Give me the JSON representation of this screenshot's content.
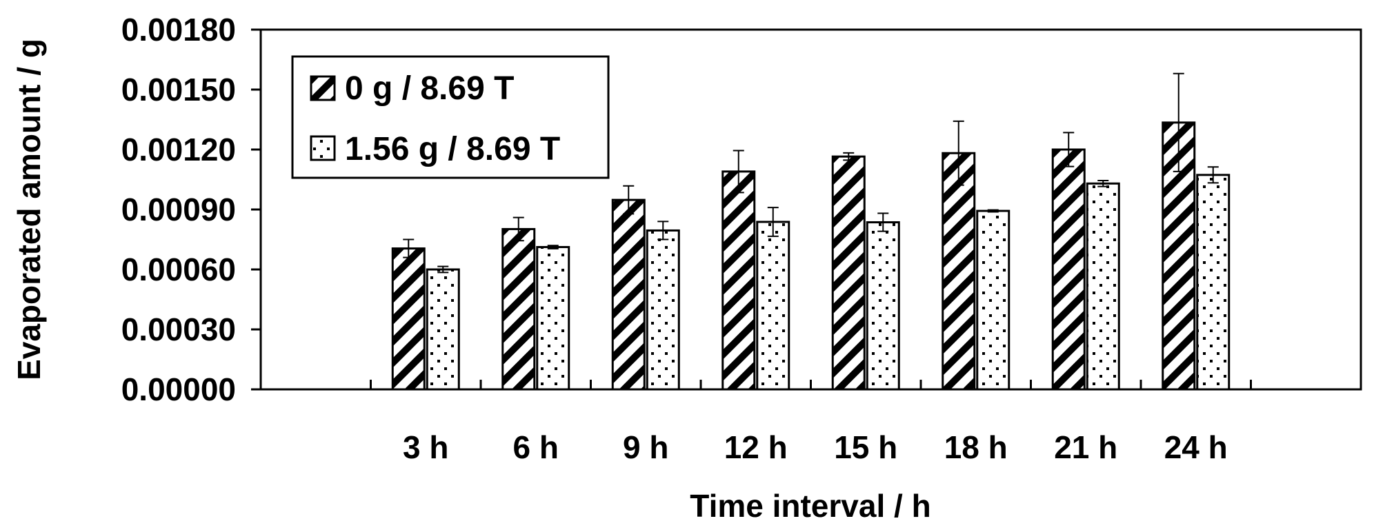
{
  "chart_data": {
    "type": "bar",
    "title": "",
    "xlabel": "Time interval / h",
    "ylabel": "Evaporated amount / g",
    "ylim": [
      0,
      0.0018
    ],
    "yticks": [
      "0.00000",
      "0.00030",
      "0.00060",
      "0.00090",
      "0.00120",
      "0.00150",
      "0.00180"
    ],
    "categories": [
      "",
      "3 h",
      "6 h",
      "9 h",
      "12 h",
      "15 h",
      "18 h",
      "21 h",
      "24 h",
      ""
    ],
    "series": [
      {
        "name": "0 g / 8.69 T",
        "pattern": "diagonal-hatch",
        "values": [
          null,
          0.000705,
          0.000802,
          0.000948,
          0.00109,
          0.001165,
          0.001182,
          0.0012,
          0.001335,
          null
        ],
        "errors": [
          null,
          4.5e-05,
          5.8e-05,
          7e-05,
          0.000105,
          1.8e-05,
          0.00016,
          8.5e-05,
          0.000245,
          null
        ]
      },
      {
        "name": "1.56 g / 8.69 T",
        "pattern": "dotted",
        "values": [
          null,
          0.0006,
          0.000712,
          0.000795,
          0.000838,
          0.000836,
          0.000893,
          0.00103,
          0.001073,
          null
        ],
        "errors": [
          null,
          1.5e-05,
          8e-06,
          4.5e-05,
          7.2e-05,
          4.5e-05,
          5e-06,
          1.5e-05,
          4e-05,
          null
        ]
      }
    ],
    "legend": "top-left",
    "grid": false
  },
  "colors": {
    "bar_outline": "#000000",
    "fill": "#ffffff",
    "pattern": "#000000"
  }
}
